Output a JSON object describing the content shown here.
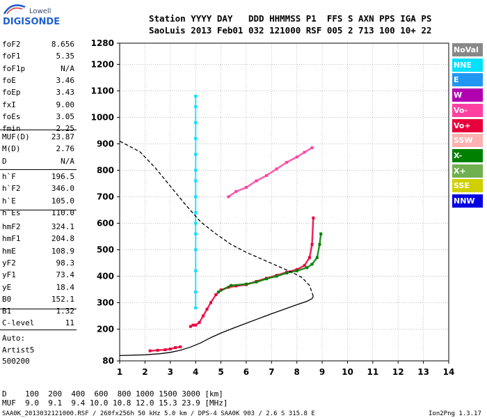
{
  "logo": {
    "top": "Lowell",
    "bottom": "DIGISONDE"
  },
  "header": {
    "line1": "Station YYYY DAY   DDD HHMMSS P1  FFS S AXN PPS IGA PS",
    "line2": "SaoLuis 2013 Feb01 032 121000 RSF 005 2 713 100 10+ 22"
  },
  "params_a": [
    {
      "k": "foF2",
      "v": "8.656"
    },
    {
      "k": "foF1",
      "v": "5.35"
    },
    {
      "k": "foF1p",
      "v": "N/A"
    },
    {
      "k": "foE",
      "v": "3.46"
    },
    {
      "k": "foEp",
      "v": "3.43"
    },
    {
      "k": "fxI",
      "v": "9.00"
    },
    {
      "k": "foEs",
      "v": "3.05"
    },
    {
      "k": "fmin",
      "v": "2.25"
    }
  ],
  "params_b": [
    {
      "k": "MUF(D)",
      "v": "23.87"
    },
    {
      "k": "M(D)",
      "v": "2.76"
    },
    {
      "k": "D",
      "v": "N/A"
    }
  ],
  "params_c": [
    {
      "k": "h`F",
      "v": "196.5"
    },
    {
      "k": "h`F2",
      "v": "346.0"
    },
    {
      "k": "h`E",
      "v": "105.0"
    },
    {
      "k": "h`Es",
      "v": "110.0"
    }
  ],
  "params_d": [
    {
      "k": "hmF2",
      "v": "324.1"
    },
    {
      "k": "hmF1",
      "v": "204.8"
    },
    {
      "k": "hmE",
      "v": "108.9"
    },
    {
      "k": "yF2",
      "v": "98.3"
    },
    {
      "k": "yF1",
      "v": "73.4"
    },
    {
      "k": "yE",
      "v": "18.4"
    },
    {
      "k": "B0",
      "v": "152.1"
    },
    {
      "k": "B1",
      "v": "1.32"
    }
  ],
  "params_e": [
    {
      "k": "C-level",
      "v": "11"
    }
  ],
  "auto": [
    "Auto:",
    "Artist5",
    "500200"
  ],
  "legend": [
    {
      "label": "NoVal",
      "color": "#888888"
    },
    {
      "label": "NNE",
      "color": "#00e0ff"
    },
    {
      "label": "E",
      "color": "#2196f3"
    },
    {
      "label": "W",
      "color": "#b000b0"
    },
    {
      "label": "Vo-",
      "color": "#ff40a0"
    },
    {
      "label": "Vo+",
      "color": "#e8003c"
    },
    {
      "label": "SSW",
      "color": "#ffb0b0"
    },
    {
      "label": "X-",
      "color": "#008000"
    },
    {
      "label": "X+",
      "color": "#70b050"
    },
    {
      "label": "SSE",
      "color": "#d0d000"
    },
    {
      "label": "NNW",
      "color": "#0000e0"
    }
  ],
  "bottom": {
    "d_row": "D    100  200  400  600  800 1000 1500 3000 [km]",
    "muf_row": "MUF  9.0  9.1  9.4 10.0 10.8 12.0 15.3 23.9 [MHz]"
  },
  "footer": {
    "left": "SAA0K_2013032121000.RSF / 260fx256h 50 kHz 5.0 km / DPS-4 SAA0K 903 / 2.6 S 315.8 E",
    "right": "Ion2Png 1.3.17"
  },
  "chart_data": {
    "type": "scatter",
    "xlabel": "",
    "ylabel": "",
    "xlim": [
      1,
      14
    ],
    "ylim": [
      80,
      1280
    ],
    "x_ticks": [
      1,
      2,
      3,
      4,
      5,
      6,
      7,
      8,
      9,
      10,
      11,
      12,
      13,
      14
    ],
    "y_ticks": [
      80,
      200,
      300,
      400,
      500,
      600,
      700,
      800,
      900,
      1000,
      1100,
      1200,
      1280
    ],
    "grid": true,
    "series": [
      {
        "name": "O-trace",
        "color": "#e8003c",
        "points": [
          [
            3.8,
            210
          ],
          [
            3.9,
            215
          ],
          [
            4.0,
            215
          ],
          [
            4.15,
            225
          ],
          [
            4.3,
            250
          ],
          [
            4.45,
            275
          ],
          [
            4.6,
            300
          ],
          [
            4.8,
            330
          ],
          [
            5.0,
            348
          ],
          [
            5.3,
            358
          ],
          [
            5.6,
            363
          ],
          [
            6.0,
            368
          ],
          [
            6.4,
            380
          ],
          [
            6.8,
            392
          ],
          [
            7.2,
            403
          ],
          [
            7.6,
            415
          ],
          [
            8.0,
            425
          ],
          [
            8.3,
            440
          ],
          [
            8.5,
            470
          ],
          [
            8.6,
            520
          ],
          [
            8.65,
            620
          ]
        ]
      },
      {
        "name": "X-trace",
        "color": "#008000",
        "points": [
          [
            4.9,
            340
          ],
          [
            5.4,
            365
          ],
          [
            6.0,
            370
          ],
          [
            6.4,
            378
          ],
          [
            6.8,
            390
          ],
          [
            7.2,
            400
          ],
          [
            7.6,
            412
          ],
          [
            8.0,
            420
          ],
          [
            8.4,
            432
          ],
          [
            8.6,
            445
          ],
          [
            8.8,
            470
          ],
          [
            8.9,
            520
          ],
          [
            8.95,
            560
          ]
        ]
      },
      {
        "name": "E-trace",
        "color": "#e8003c",
        "points": [
          [
            2.2,
            118
          ],
          [
            2.5,
            120
          ],
          [
            2.8,
            122
          ],
          [
            3.0,
            125
          ],
          [
            3.2,
            130
          ],
          [
            3.4,
            133
          ]
        ]
      },
      {
        "name": "Oblique",
        "color": "#ff40a0",
        "points": [
          [
            5.3,
            700
          ],
          [
            5.6,
            720
          ],
          [
            6.0,
            735
          ],
          [
            6.4,
            760
          ],
          [
            6.8,
            780
          ],
          [
            7.2,
            805
          ],
          [
            7.6,
            830
          ],
          [
            8.0,
            850
          ],
          [
            8.3,
            868
          ],
          [
            8.6,
            885
          ]
        ]
      },
      {
        "name": "Spread-4MHz",
        "color": "#00e0ff",
        "points": [
          [
            4.0,
            280
          ],
          [
            4.0,
            340
          ],
          [
            4.0,
            420
          ],
          [
            4.0,
            500
          ],
          [
            4.0,
            560
          ],
          [
            4.0,
            600
          ],
          [
            4.0,
            640
          ],
          [
            4.0,
            700
          ],
          [
            4.0,
            760
          ],
          [
            4.0,
            800
          ],
          [
            4.0,
            860
          ],
          [
            4.0,
            920
          ],
          [
            4.0,
            980
          ],
          [
            4.0,
            1040
          ],
          [
            4.0,
            1080
          ]
        ]
      },
      {
        "name": "Profile",
        "color": "#000000",
        "points": [
          [
            1.0,
            100
          ],
          [
            2.0,
            103
          ],
          [
            2.6,
            107
          ],
          [
            3.0,
            112
          ],
          [
            3.4,
            120
          ],
          [
            3.8,
            132
          ],
          [
            4.2,
            148
          ],
          [
            4.6,
            168
          ],
          [
            5.0,
            185
          ],
          [
            5.5,
            204
          ],
          [
            6.0,
            222
          ],
          [
            6.5,
            240
          ],
          [
            7.0,
            258
          ],
          [
            7.5,
            275
          ],
          [
            8.0,
            292
          ],
          [
            8.4,
            305
          ],
          [
            8.6,
            315
          ],
          [
            8.65,
            324
          ]
        ]
      },
      {
        "name": "Topside",
        "color": "#000000",
        "points": [
          [
            8.65,
            324
          ],
          [
            8.5,
            365
          ],
          [
            8.2,
            395
          ],
          [
            7.8,
            415
          ],
          [
            7.2,
            440
          ],
          [
            6.6,
            465
          ],
          [
            6.0,
            490
          ],
          [
            5.4,
            520
          ],
          [
            4.8,
            560
          ],
          [
            4.2,
            605
          ],
          [
            3.6,
            670
          ],
          [
            3.0,
            740
          ],
          [
            2.4,
            810
          ],
          [
            1.8,
            870
          ],
          [
            1.0,
            910
          ]
        ]
      }
    ]
  }
}
